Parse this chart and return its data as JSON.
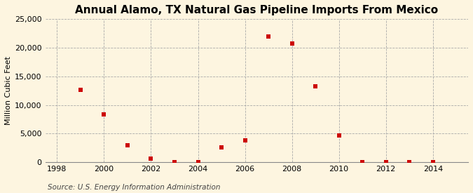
{
  "title": "Annual Alamo, TX Natural Gas Pipeline Imports From Mexico",
  "ylabel": "Million Cubic Feet",
  "source": "Source: U.S. Energy Information Administration",
  "background_color": "#fdf5e0",
  "plot_background_color": "#fdf5e0",
  "years": [
    1999,
    2000,
    2001,
    2002,
    2003,
    2004,
    2005,
    2006,
    2007,
    2008,
    2009,
    2010,
    2011,
    2012,
    2013,
    2014
  ],
  "values": [
    12700,
    8400,
    3000,
    600,
    80,
    80,
    2600,
    3800,
    22000,
    20800,
    13300,
    4700,
    80,
    80,
    80,
    80
  ],
  "marker_color": "#cc0000",
  "marker_size": 4,
  "ylim": [
    0,
    25000
  ],
  "yticks": [
    0,
    5000,
    10000,
    15000,
    20000,
    25000
  ],
  "xlim": [
    1997.5,
    2015.5
  ],
  "xticks": [
    1998,
    2000,
    2002,
    2004,
    2006,
    2008,
    2010,
    2012,
    2014
  ],
  "title_fontsize": 11,
  "label_fontsize": 8,
  "tick_fontsize": 8,
  "source_fontsize": 7.5,
  "grid_color": "#aaaaaa",
  "grid_linewidth": 0.6
}
